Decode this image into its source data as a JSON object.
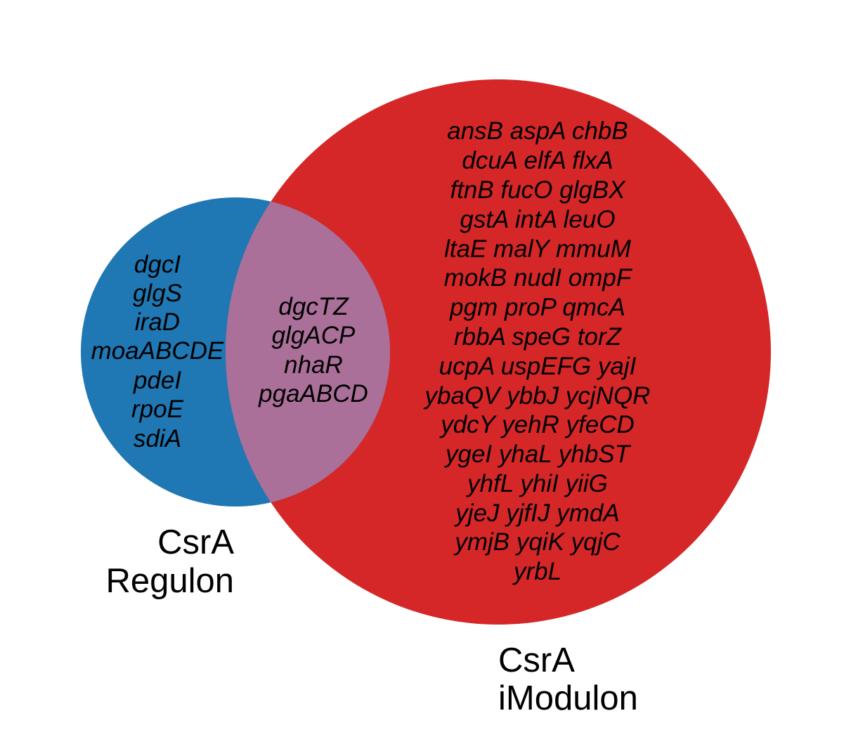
{
  "colors": {
    "regulon": "#1f77b4",
    "imodulon": "#d62728",
    "overlap": "#aa7099",
    "text": "#000000",
    "background": "#ffffff"
  },
  "sets": {
    "regulon": {
      "label_lines": [
        "CsrA",
        "Regulon"
      ],
      "genes": [
        "dgcI",
        "glgS",
        "iraD",
        "moaABCDE",
        "pdeI",
        "rpoE",
        "sdiA"
      ]
    },
    "imodulon": {
      "label_lines": [
        "CsrA",
        "iModulon"
      ],
      "genes": [
        "ansB aspA chbB",
        "dcuA elfA flxA",
        "ftnB fucO glgBX",
        "gstA intA leuO",
        "ltaE malY mmuM",
        "mokB nudI ompF",
        "pgm proP qmcA",
        "rbbA speG torZ",
        "ucpA uspEFG yajI",
        "ybaQV ybbJ ycjNQR",
        "ydcY yehR yfeCD",
        "ygeI yhaL yhbST",
        "yhfL yhiI yiiG",
        "yjeJ yjfIJ ymdA",
        "ymjB yqiK yqjC",
        "yrbL"
      ]
    },
    "overlap": {
      "genes": [
        "dgcTZ",
        "glgACP",
        "nhaR",
        "pgaABCD"
      ]
    }
  }
}
